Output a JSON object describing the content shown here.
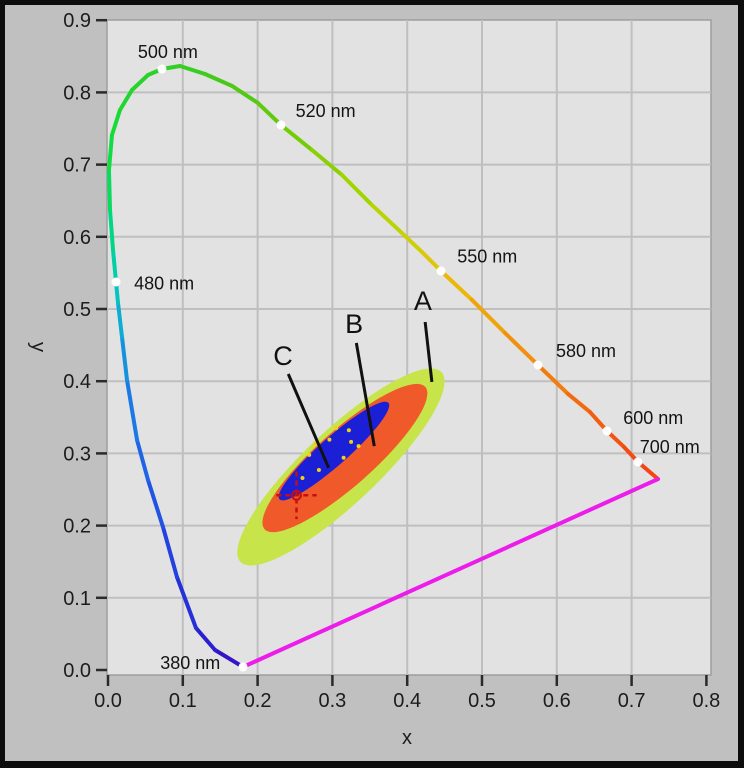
{
  "figure": {
    "frame_color": "#0d0d0d",
    "margin_color": "#c0c0c0",
    "plot_bg": "#e2e2e2",
    "plot_border": "#9e9e9e",
    "grid_color": "#bfbfbf",
    "tick_color": "#2a2a2a",
    "text_color": "#1c1c1c",
    "marker_dot_color": "#ffffff"
  },
  "chart_data": {
    "type": "scatter",
    "description": "CIE 1931 xy chromaticity diagram with spectral locus, line of purples, and three nested chromaticity ellipses labeled A, B, C",
    "xlabel": "x",
    "ylabel": "y",
    "xlim": [
      0.0,
      0.8
    ],
    "ylim": [
      0.0,
      0.9
    ],
    "grid": true,
    "xticks": {
      "values": [
        0.0,
        0.1,
        0.2,
        0.3,
        0.4,
        0.5,
        0.6,
        0.7,
        0.8
      ],
      "labels": [
        "0.0",
        "0.1",
        "0.2",
        "0.3",
        "0.4",
        "0.5",
        "0.6",
        "0.7",
        "0.8"
      ]
    },
    "yticks": {
      "values": [
        0.0,
        0.1,
        0.2,
        0.3,
        0.4,
        0.5,
        0.6,
        0.7,
        0.8,
        0.9
      ],
      "labels": [
        "0.0",
        "0.1",
        "0.2",
        "0.3",
        "0.4",
        "0.5",
        "0.6",
        "0.7",
        "0.8",
        "0.9"
      ]
    },
    "spectral_locus": {
      "stroke_width": 4,
      "points": [
        [
          0.1805,
          0.0042,
          "#3513c6"
        ],
        [
          0.1431,
          0.0277,
          "#2b20d0"
        ],
        [
          0.1176,
          0.0582,
          "#2531d8"
        ],
        [
          0.0922,
          0.1288,
          "#2342de"
        ],
        [
          0.0735,
          0.1981,
          "#2254e2"
        ],
        [
          0.0535,
          0.2632,
          "#2064e6"
        ],
        [
          0.0388,
          0.3186,
          "#1b79e6"
        ],
        [
          0.0254,
          0.4017,
          "#1492de"
        ],
        [
          0.0187,
          0.4612,
          "#0cadd2"
        ],
        [
          0.0134,
          0.5083,
          "#04c4c0"
        ],
        [
          0.0107,
          0.5374,
          "#00cfa8"
        ],
        [
          0.0067,
          0.5817,
          "#00d786"
        ],
        [
          0.0027,
          0.6371,
          "#08db5e"
        ],
        [
          0.0013,
          0.6925,
          "#10dc44"
        ],
        [
          0.0053,
          0.741,
          "#19da37"
        ],
        [
          0.016,
          0.7756,
          "#20d72f"
        ],
        [
          0.0321,
          0.8033,
          "#26d42b"
        ],
        [
          0.0535,
          0.8241,
          "#2bd229"
        ],
        [
          0.0722,
          0.8324,
          "#30d026"
        ],
        [
          0.0963,
          0.8366,
          "#38cd21"
        ],
        [
          0.1297,
          0.8255,
          "#44ca1b"
        ],
        [
          0.1658,
          0.8089,
          "#52c914"
        ],
        [
          0.2005,
          0.7853,
          "#62ca0d"
        ],
        [
          0.2313,
          0.7548,
          "#74cc07"
        ],
        [
          0.2727,
          0.7202,
          "#8ad004"
        ],
        [
          0.3128,
          0.6856,
          "#a1d403"
        ],
        [
          0.3529,
          0.644,
          "#b8d405"
        ],
        [
          0.393,
          0.6052,
          "#ccd007"
        ],
        [
          0.4198,
          0.5789,
          "#dec708"
        ],
        [
          0.4452,
          0.5526,
          "#ebb709"
        ],
        [
          0.4866,
          0.5125,
          "#f0a40b"
        ],
        [
          0.5307,
          0.4668,
          "#f2900d"
        ],
        [
          0.5749,
          0.4224,
          "#f37c0e"
        ],
        [
          0.615,
          0.3823,
          "#f36b10"
        ],
        [
          0.6444,
          0.3573,
          "#f35d11"
        ],
        [
          0.6671,
          0.331,
          "#f35312"
        ],
        [
          0.6898,
          0.3089,
          "#f34b12"
        ],
        [
          0.7086,
          0.2881,
          "#f34612"
        ],
        [
          0.7353,
          0.2645,
          "#f34612"
        ]
      ],
      "purple_line_color": "#ec1cea"
    },
    "wavelength_markers": [
      {
        "label": "380 nm",
        "dot": [
          0.1805,
          0.0042
        ],
        "label_pos": [
          0.11,
          0.01
        ]
      },
      {
        "label": "480 nm",
        "dot": [
          0.0107,
          0.5374
        ],
        "label_pos": [
          0.075,
          0.535
        ]
      },
      {
        "label": "500 nm",
        "dot": [
          0.0722,
          0.8324
        ],
        "label_pos": [
          0.08,
          0.856
        ]
      },
      {
        "label": "520 nm",
        "dot": [
          0.2313,
          0.7548
        ],
        "label_pos": [
          0.291,
          0.774
        ]
      },
      {
        "label": "550 nm",
        "dot": [
          0.4452,
          0.5526
        ],
        "label_pos": [
          0.507,
          0.573
        ]
      },
      {
        "label": "580 nm",
        "dot": [
          0.5749,
          0.4224
        ],
        "label_pos": [
          0.639,
          0.442
        ]
      },
      {
        "label": "600 nm",
        "dot": [
          0.6671,
          0.331
        ],
        "label_pos": [
          0.729,
          0.349
        ]
      },
      {
        "label": "700 nm",
        "dot": [
          0.7086,
          0.2881
        ],
        "label_pos": [
          0.751,
          0.309
        ]
      }
    ],
    "ellipses": [
      {
        "id": "A",
        "cx": 0.3114,
        "cy": 0.2812,
        "a": 0.188,
        "b": 0.05,
        "angle_deg": 43.3,
        "color": "#c7e44a"
      },
      {
        "id": "B",
        "cx": 0.3167,
        "cy": 0.2936,
        "a": 0.146,
        "b": 0.038,
        "angle_deg": 41.5,
        "color": "#f05a2b"
      },
      {
        "id": "C",
        "cx": 0.3021,
        "cy": 0.3033,
        "a": 0.099,
        "b": 0.019,
        "angle_deg": 41.5,
        "color": "#1b1fd6"
      }
    ],
    "speckles": {
      "color": "#f0d018",
      "points": [
        [
          0.269,
          0.298
        ],
        [
          0.296,
          0.319
        ],
        [
          0.322,
          0.332
        ],
        [
          0.282,
          0.277
        ],
        [
          0.315,
          0.294
        ],
        [
          0.26,
          0.266
        ],
        [
          0.335,
          0.31
        ],
        [
          0.305,
          0.335
        ],
        [
          0.277,
          0.313
        ],
        [
          0.325,
          0.316
        ]
      ]
    },
    "annotations": [
      {
        "text": "A",
        "pos": [
          0.421,
          0.511
        ],
        "line": [
          [
            0.424,
            0.482
          ],
          [
            0.433,
            0.399
          ]
        ]
      },
      {
        "text": "B",
        "pos": [
          0.329,
          0.479
        ],
        "line": [
          [
            0.332,
            0.453
          ],
          [
            0.356,
            0.31
          ]
        ]
      },
      {
        "text": "C",
        "pos": [
          0.234,
          0.435
        ],
        "line": [
          [
            0.241,
            0.41
          ],
          [
            0.295,
            0.28
          ]
        ]
      }
    ],
    "crosshair": {
      "x": 0.252,
      "y": 0.242,
      "arm_x": 0.027,
      "arm_y": 0.033,
      "radius": 0.006,
      "color": "#c41010"
    }
  }
}
